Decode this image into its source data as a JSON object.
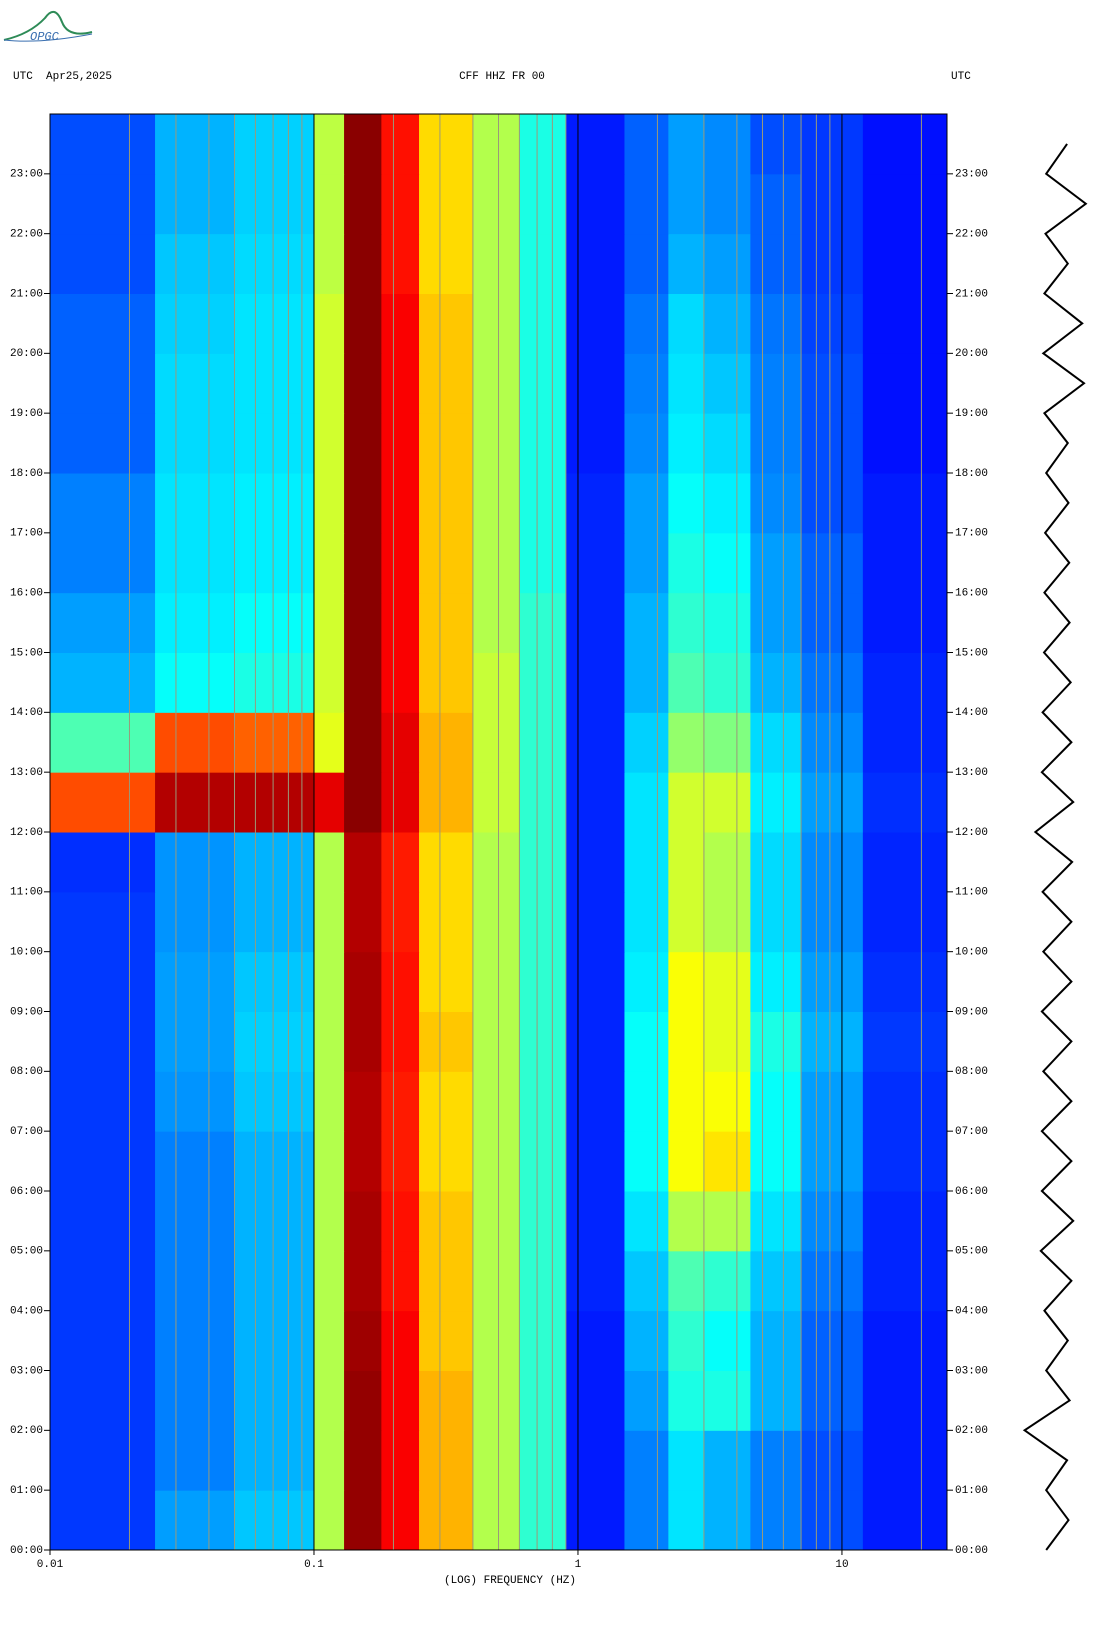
{
  "logo": "OPGC",
  "chart_data": {
    "type": "spectrogram",
    "header_left": "UTC  Apr25,2025",
    "title": "CFF HHZ FR 00",
    "header_right": "UTC",
    "xlabel": "(LOG) FREQUENCY (HZ)",
    "xscale": "log",
    "xlim": [
      0.01,
      25
    ],
    "xticks": [
      0.01,
      0.1,
      1,
      10
    ],
    "xminor": [
      0.02,
      0.03,
      0.04,
      0.05,
      0.06,
      0.07,
      0.08,
      0.09,
      0.2,
      0.3,
      0.4,
      0.5,
      0.6,
      0.7,
      0.8,
      0.9,
      2,
      3,
      4,
      5,
      6,
      7,
      8,
      9,
      20
    ],
    "ylim": [
      0,
      24
    ],
    "yticks": [
      {
        "value": 0,
        "label": "00:00"
      },
      {
        "value": 1,
        "label": "01:00"
      },
      {
        "value": 2,
        "label": "02:00"
      },
      {
        "value": 3,
        "label": "03:00"
      },
      {
        "value": 4,
        "label": "04:00"
      },
      {
        "value": 5,
        "label": "05:00"
      },
      {
        "value": 6,
        "label": "06:00"
      },
      {
        "value": 7,
        "label": "07:00"
      },
      {
        "value": 8,
        "label": "08:00"
      },
      {
        "value": 9,
        "label": "09:00"
      },
      {
        "value": 10,
        "label": "10:00"
      },
      {
        "value": 11,
        "label": "11:00"
      },
      {
        "value": 12,
        "label": "12:00"
      },
      {
        "value": 13,
        "label": "13:00"
      },
      {
        "value": 14,
        "label": "14:00"
      },
      {
        "value": 15,
        "label": "15:00"
      },
      {
        "value": 16,
        "label": "16:00"
      },
      {
        "value": 17,
        "label": "17:00"
      },
      {
        "value": 18,
        "label": "18:00"
      },
      {
        "value": 19,
        "label": "19:00"
      },
      {
        "value": 20,
        "label": "20:00"
      },
      {
        "value": 21,
        "label": "21:00"
      },
      {
        "value": 22,
        "label": "22:00"
      },
      {
        "value": 23,
        "label": "23:00"
      }
    ],
    "freq_bins": [
      0.01,
      0.025,
      0.05,
      0.1,
      0.13,
      0.18,
      0.25,
      0.4,
      0.6,
      0.9,
      1.5,
      2.2,
      3,
      4.5,
      7,
      12,
      25
    ],
    "time_bins": [
      0,
      1,
      2,
      3,
      4,
      5,
      6,
      7,
      8,
      9,
      10,
      11,
      12,
      13,
      14,
      15,
      16,
      17,
      18,
      19,
      20,
      21,
      22,
      23,
      24
    ],
    "z": [
      [
        0.18,
        0.28,
        0.32,
        0.55,
        0.98,
        0.88,
        0.7,
        0.55,
        0.42,
        0.15,
        0.25,
        0.35,
        0.3,
        0.25,
        0.2,
        0.15
      ],
      [
        0.18,
        0.25,
        0.3,
        0.55,
        0.98,
        0.88,
        0.7,
        0.55,
        0.42,
        0.15,
        0.25,
        0.35,
        0.3,
        0.25,
        0.2,
        0.15
      ],
      [
        0.18,
        0.25,
        0.3,
        0.55,
        0.98,
        0.88,
        0.7,
        0.55,
        0.42,
        0.15,
        0.28,
        0.4,
        0.4,
        0.3,
        0.22,
        0.15
      ],
      [
        0.18,
        0.25,
        0.3,
        0.55,
        0.97,
        0.88,
        0.68,
        0.55,
        0.42,
        0.15,
        0.3,
        0.42,
        0.38,
        0.3,
        0.22,
        0.15
      ],
      [
        0.18,
        0.25,
        0.3,
        0.55,
        0.96,
        0.86,
        0.68,
        0.55,
        0.42,
        0.16,
        0.32,
        0.45,
        0.42,
        0.32,
        0.24,
        0.16
      ],
      [
        0.18,
        0.25,
        0.3,
        0.55,
        0.96,
        0.86,
        0.68,
        0.55,
        0.42,
        0.16,
        0.35,
        0.55,
        0.55,
        0.35,
        0.26,
        0.16
      ],
      [
        0.18,
        0.25,
        0.3,
        0.55,
        0.95,
        0.85,
        0.66,
        0.55,
        0.42,
        0.16,
        0.38,
        0.62,
        0.65,
        0.38,
        0.28,
        0.17
      ],
      [
        0.18,
        0.27,
        0.32,
        0.55,
        0.95,
        0.85,
        0.66,
        0.55,
        0.42,
        0.16,
        0.38,
        0.62,
        0.62,
        0.38,
        0.28,
        0.17
      ],
      [
        0.18,
        0.28,
        0.33,
        0.55,
        0.96,
        0.86,
        0.68,
        0.55,
        0.42,
        0.16,
        0.38,
        0.62,
        0.6,
        0.4,
        0.3,
        0.18
      ],
      [
        0.18,
        0.28,
        0.32,
        0.55,
        0.96,
        0.86,
        0.66,
        0.55,
        0.42,
        0.16,
        0.36,
        0.62,
        0.6,
        0.36,
        0.28,
        0.17
      ],
      [
        0.18,
        0.27,
        0.3,
        0.55,
        0.95,
        0.85,
        0.66,
        0.55,
        0.42,
        0.16,
        0.35,
        0.58,
        0.55,
        0.34,
        0.26,
        0.16
      ],
      [
        0.17,
        0.27,
        0.3,
        0.55,
        0.95,
        0.85,
        0.66,
        0.55,
        0.42,
        0.16,
        0.35,
        0.58,
        0.55,
        0.34,
        0.26,
        0.16
      ],
      [
        0.8,
        0.95,
        0.95,
        0.9,
        0.99,
        0.9,
        0.7,
        0.57,
        0.42,
        0.16,
        0.35,
        0.58,
        0.58,
        0.36,
        0.28,
        0.17
      ],
      [
        0.45,
        0.8,
        0.78,
        0.6,
        0.99,
        0.9,
        0.7,
        0.57,
        0.42,
        0.16,
        0.33,
        0.52,
        0.5,
        0.34,
        0.26,
        0.16
      ],
      [
        0.3,
        0.38,
        0.4,
        0.58,
        0.99,
        0.88,
        0.68,
        0.57,
        0.42,
        0.16,
        0.3,
        0.45,
        0.42,
        0.3,
        0.24,
        0.16
      ],
      [
        0.28,
        0.36,
        0.38,
        0.58,
        0.99,
        0.88,
        0.68,
        0.55,
        0.42,
        0.16,
        0.3,
        0.42,
        0.4,
        0.28,
        0.22,
        0.15
      ],
      [
        0.25,
        0.35,
        0.36,
        0.58,
        0.99,
        0.88,
        0.68,
        0.55,
        0.4,
        0.16,
        0.28,
        0.4,
        0.38,
        0.28,
        0.22,
        0.15
      ],
      [
        0.25,
        0.35,
        0.36,
        0.58,
        0.99,
        0.88,
        0.68,
        0.55,
        0.4,
        0.16,
        0.28,
        0.38,
        0.36,
        0.26,
        0.2,
        0.15
      ],
      [
        0.22,
        0.34,
        0.35,
        0.58,
        0.99,
        0.88,
        0.68,
        0.55,
        0.4,
        0.15,
        0.26,
        0.36,
        0.34,
        0.25,
        0.2,
        0.14
      ],
      [
        0.22,
        0.34,
        0.35,
        0.58,
        0.99,
        0.88,
        0.68,
        0.55,
        0.4,
        0.15,
        0.25,
        0.35,
        0.32,
        0.25,
        0.2,
        0.14
      ],
      [
        0.22,
        0.33,
        0.35,
        0.58,
        0.99,
        0.88,
        0.68,
        0.55,
        0.4,
        0.15,
        0.24,
        0.34,
        0.3,
        0.24,
        0.19,
        0.14
      ],
      [
        0.2,
        0.32,
        0.34,
        0.56,
        0.99,
        0.86,
        0.66,
        0.55,
        0.4,
        0.15,
        0.22,
        0.3,
        0.28,
        0.22,
        0.18,
        0.14
      ],
      [
        0.2,
        0.3,
        0.33,
        0.56,
        0.99,
        0.86,
        0.66,
        0.55,
        0.4,
        0.15,
        0.22,
        0.28,
        0.26,
        0.22,
        0.18,
        0.14
      ],
      [
        0.2,
        0.3,
        0.33,
        0.56,
        0.99,
        0.86,
        0.66,
        0.55,
        0.4,
        0.15,
        0.22,
        0.28,
        0.26,
        0.2,
        0.18,
        0.14
      ]
    ],
    "trace": {
      "t": [
        0,
        0.5,
        1,
        1.5,
        2,
        2.5,
        3,
        3.5,
        4,
        4.5,
        5,
        5.5,
        6,
        6.5,
        7,
        7.5,
        8,
        8.5,
        9,
        9.5,
        10,
        10.5,
        11,
        11.5,
        12,
        12.5,
        13,
        13.5,
        14,
        14.5,
        15,
        15.5,
        16,
        16.5,
        17,
        17.5,
        18,
        18.5,
        19,
        19.5,
        20,
        20.5,
        21,
        21.5,
        22,
        22.5,
        23,
        23.5
      ],
      "amplitude": [
        0.3,
        0.32,
        0.3,
        0.28,
        0.9,
        0.35,
        0.3,
        0.3,
        0.35,
        0.4,
        0.45,
        0.45,
        0.42,
        0.4,
        0.42,
        0.4,
        0.38,
        0.4,
        0.42,
        0.4,
        0.38,
        0.4,
        0.4,
        0.42,
        0.6,
        0.45,
        0.42,
        0.4,
        0.4,
        0.38,
        0.36,
        0.35,
        0.35,
        0.34,
        0.33,
        0.32,
        0.3,
        0.3,
        0.35,
        0.75,
        0.38,
        0.7,
        0.35,
        0.3,
        0.32,
        0.8,
        0.3,
        0.28
      ],
      "color": "#000000"
    }
  }
}
